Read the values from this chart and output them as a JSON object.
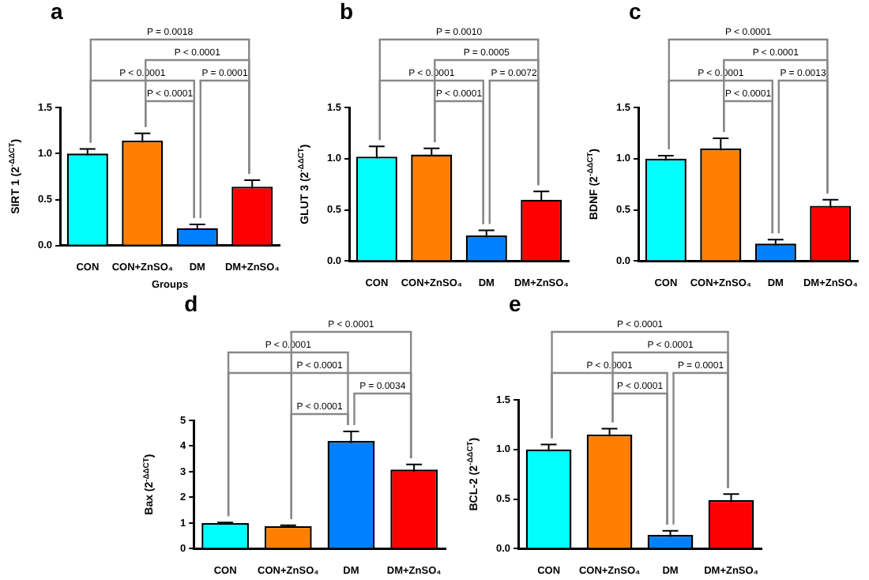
{
  "chart_data": [
    {
      "type": "bar",
      "title": "a",
      "ylabel": "SIRT 1 (2$^{-ΔΔCT}$)",
      "xlabel": "Groups",
      "categories": [
        "CON",
        "CON+ZnSO₄",
        "DM",
        "DM+ZnSO₄"
      ],
      "values": [
        1.0,
        1.14,
        0.19,
        0.64
      ],
      "errors": [
        0.05,
        0.08,
        0.04,
        0.07
      ],
      "colors": [
        "#00ffff",
        "#ff8000",
        "#0080ff",
        "#ff0000"
      ],
      "ylim": [
        0,
        1.5
      ],
      "yticks": [
        {
          "value": 0,
          "label": "0.0"
        },
        {
          "value": 0.5,
          "label": "0.5"
        },
        {
          "value": 1,
          "label": "1.0"
        },
        {
          "value": 1.5,
          "label": "1.5"
        }
      ],
      "annotations": [
        "P = 0.0018",
        "P < 0.0001",
        "P < 0.0001",
        "P = 0.0001",
        "P < 0.0001"
      ]
    },
    {
      "type": "bar",
      "title": "b",
      "ylabel": "GLUT 3 (2$^{-ΔΔCT}$)",
      "categories": [
        "CON",
        "CON+ZnSO₄",
        "DM",
        "DM+ZnSO₄"
      ],
      "values": [
        1.02,
        1.04,
        0.25,
        0.6
      ],
      "errors": [
        0.1,
        0.06,
        0.05,
        0.08
      ],
      "colors": [
        "#00ffff",
        "#ff8000",
        "#0080ff",
        "#ff0000"
      ],
      "ylim": [
        0,
        1.5
      ],
      "yticks": [
        {
          "value": 0,
          "label": "0.0"
        },
        {
          "value": 0.5,
          "label": "0.5"
        },
        {
          "value": 1,
          "label": "1.0"
        },
        {
          "value": 1.5,
          "label": "1.5"
        }
      ],
      "annotations": [
        "P = 0.0010",
        "P = 0.0005",
        "P < 0.0001",
        "P = 0.0072",
        "P < 0.0001"
      ]
    },
    {
      "type": "bar",
      "title": "c",
      "ylabel": "BDNF (2$^{-ΔΔCT}$)",
      "categories": [
        "CON",
        "CON+ZnSO₄",
        "DM",
        "DM+ZnSO₄"
      ],
      "values": [
        1.0,
        1.1,
        0.17,
        0.54
      ],
      "errors": [
        0.03,
        0.1,
        0.04,
        0.06
      ],
      "colors": [
        "#00ffff",
        "#ff8000",
        "#0080ff",
        "#ff0000"
      ],
      "ylim": [
        0,
        1.5
      ],
      "yticks": [
        {
          "value": 0,
          "label": "0.0"
        },
        {
          "value": 0.5,
          "label": "0.5"
        },
        {
          "value": 1,
          "label": "1.0"
        },
        {
          "value": 1.5,
          "label": "1.5"
        }
      ],
      "annotations": [
        "P < 0.0001",
        "P < 0.0001",
        "P < 0.0001",
        "P = 0.0013",
        "P < 0.0001"
      ]
    },
    {
      "type": "bar",
      "title": "d",
      "ylabel": "Bax (2$^{-ΔΔCT}$)",
      "categories": [
        "CON",
        "CON+ZnSO₄",
        "DM",
        "DM+ZnSO₄"
      ],
      "values": [
        1.0,
        0.88,
        4.2,
        3.08
      ],
      "errors": [
        0.02,
        0.03,
        0.37,
        0.2
      ],
      "colors": [
        "#00ffff",
        "#ff8000",
        "#0080ff",
        "#ff0000"
      ],
      "ylim": [
        0,
        5
      ],
      "yticks": [
        0,
        1,
        2,
        3,
        4,
        5
      ],
      "annotations": [
        "P < 0.0001",
        "P < 0.0001",
        "P < 0.0001",
        "P = 0.0034",
        "P < 0.0001"
      ]
    },
    {
      "type": "bar",
      "title": "e",
      "ylabel": "BCL-2 (2$^{-ΔΔCT}$)",
      "categories": [
        "CON",
        "CON+ZnSO₄",
        "DM",
        "DM+ZnSO₄"
      ],
      "values": [
        1.0,
        1.15,
        0.14,
        0.49
      ],
      "errors": [
        0.05,
        0.06,
        0.04,
        0.06
      ],
      "colors": [
        "#00ffff",
        "#ff8000",
        "#0080ff",
        "#ff0000"
      ],
      "ylim": [
        0,
        1.5
      ],
      "yticks": [
        {
          "value": 0,
          "label": "0.0"
        },
        {
          "value": 0.5,
          "label": "0.5"
        },
        {
          "value": 1,
          "label": "1.0"
        },
        {
          "value": 1.5,
          "label": "1.5"
        }
      ],
      "annotations": [
        "P < 0.0001",
        "P < 0.0001",
        "P < 0.0001",
        "P = 0.0001",
        "P < 0.0001"
      ]
    }
  ]
}
